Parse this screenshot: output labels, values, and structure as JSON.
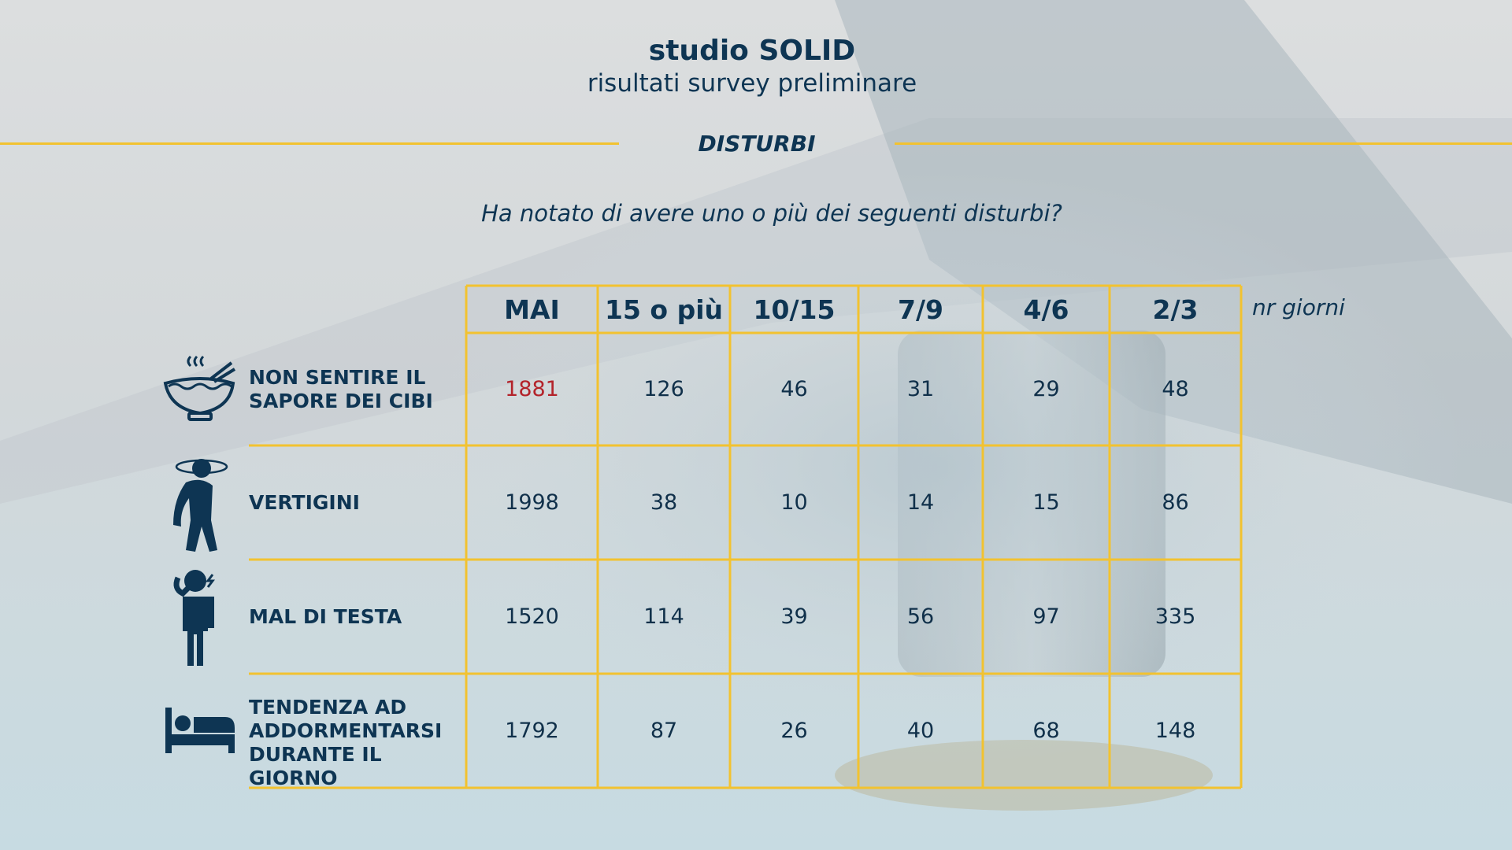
{
  "header": {
    "title": "studio SOLID",
    "subtitle": "risultati survey preliminare",
    "section": "DISTURBI",
    "question": "Ha notato di avere uno o più dei seguenti disturbi?"
  },
  "colors": {
    "accent": "#f2c230",
    "text": "#0e3553",
    "highlight": "#b3232a"
  },
  "chart_data": {
    "type": "table",
    "columns": [
      "MAI",
      "15 o più",
      "10/15",
      "7/9",
      "4/6",
      "2/3"
    ],
    "unit_label": "nr giorni",
    "rows": [
      {
        "label_lines": [
          "NON SENTIRE IL",
          "SAPORE DEI CIBI"
        ],
        "icon": "bowl-icon",
        "values": [
          "1881",
          "126",
          "46",
          "31",
          "29",
          "48"
        ],
        "highlight": [
          0
        ]
      },
      {
        "label_lines": [
          "VERTIGINI"
        ],
        "icon": "dizzy-person-icon",
        "values": [
          "1998",
          "38",
          "10",
          "14",
          "15",
          "86"
        ],
        "highlight": []
      },
      {
        "label_lines": [
          "MAL DI TESTA"
        ],
        "icon": "headache-person-icon",
        "values": [
          "1520",
          "114",
          "39",
          "56",
          "97",
          "335"
        ],
        "highlight": []
      },
      {
        "label_lines": [
          "TENDENZA AD",
          "ADDORMENTARSI",
          "DURANTE IL GIORNO"
        ],
        "icon": "bed-icon",
        "values": [
          "1792",
          "87",
          "26",
          "40",
          "68",
          "148"
        ],
        "highlight": []
      }
    ]
  }
}
